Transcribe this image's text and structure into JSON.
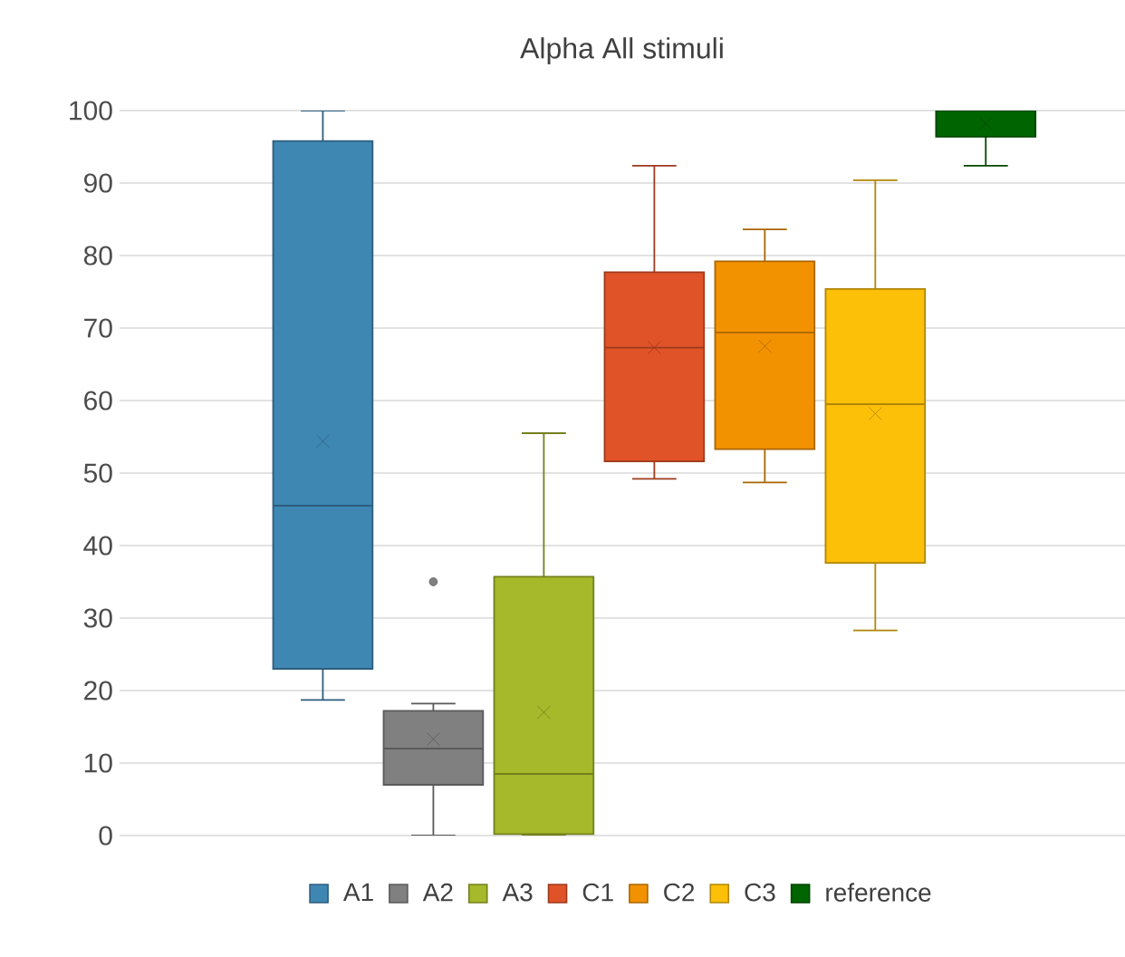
{
  "chart_data": {
    "type": "box",
    "title": "Alpha All stimuli",
    "categories": [
      null
    ],
    "ylim": [
      0,
      100
    ],
    "yticks": [
      0,
      10,
      20,
      30,
      40,
      50,
      60,
      70,
      80,
      90,
      100
    ],
    "grid": "y",
    "legend": "bottom",
    "tick_labels": "y",
    "series": [
      {
        "name": "A1",
        "color": "#3f87b3",
        "boxes": [
          {
            "low": 18.7,
            "q1": 23,
            "median": 45.5,
            "q3": 95.8,
            "high": 100,
            "mean": 54.4
          }
        ]
      },
      {
        "name": "A2",
        "color": "#808080",
        "boxes": [
          {
            "low": 0,
            "q1": 7,
            "median": 12,
            "q3": 17.2,
            "high": 18.2,
            "mean": 13.3,
            "outliers": [
              35
            ]
          }
        ]
      },
      {
        "name": "A3",
        "color": "#a5b92a",
        "boxes": [
          {
            "low": 0,
            "q1": 0.2,
            "median": 8.5,
            "q3": 35.7,
            "high": 55.5,
            "mean": 17
          }
        ]
      },
      {
        "name": "C1",
        "color": "#e05328",
        "boxes": [
          {
            "low": 49.2,
            "q1": 51.6,
            "median": 67.3,
            "q3": 77.7,
            "high": 92.4,
            "mean": 67.3
          }
        ]
      },
      {
        "name": "C2",
        "color": "#f39200",
        "boxes": [
          {
            "low": 48.7,
            "q1": 53.3,
            "median": 69.4,
            "q3": 79.2,
            "high": 83.6,
            "mean": 67.5
          }
        ]
      },
      {
        "name": "C3",
        "color": "#fdc009",
        "boxes": [
          {
            "low": 28.3,
            "q1": 37.6,
            "median": 59.5,
            "q3": 75.4,
            "high": 90.4,
            "mean": 58.2
          }
        ]
      },
      {
        "name": "reference",
        "color": "#006400",
        "boxes": [
          {
            "low": 92.4,
            "q1": 96.4,
            "median": 100,
            "q3": 100,
            "high": 100,
            "mean": 98.2
          }
        ]
      }
    ]
  }
}
